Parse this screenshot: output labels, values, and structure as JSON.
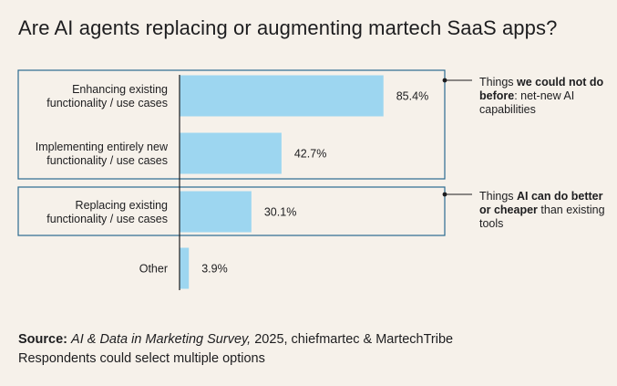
{
  "title": "Are AI agents replacing or augmenting martech SaaS apps?",
  "chart_data": {
    "type": "bar",
    "orientation": "horizontal",
    "categories": [
      [
        "Enhancing existing",
        "functionality / use cases"
      ],
      [
        "Implementing entirely new",
        "functionality / use cases"
      ],
      [
        "Replacing existing",
        "functionality / use cases"
      ],
      [
        "Other"
      ]
    ],
    "values": [
      85.4,
      42.7,
      30.1,
      3.9
    ],
    "value_labels": [
      "85.4%",
      "42.7%",
      "30.1%",
      "3.9%"
    ],
    "xlim": [
      0,
      100
    ],
    "bar_color": "#9dd6f0",
    "box_color": "#2b6a8f",
    "groups": [
      {
        "members": [
          0,
          1
        ],
        "annotation": {
          "parts": [
            [
              "Things ",
              false
            ],
            [
              "we could not do before",
              true
            ],
            [
              ": net-new AI capabilities",
              false
            ]
          ]
        }
      },
      {
        "members": [
          2
        ],
        "annotation": {
          "parts": [
            [
              "Things ",
              false
            ],
            [
              "AI can do better or cheaper",
              true
            ],
            [
              " than existing tools",
              false
            ]
          ]
        }
      }
    ],
    "grid": false,
    "legend": "none"
  },
  "footer": {
    "source_label": "Source:",
    "source_title": "AI & Data in Marketing Survey,",
    "source_rest": " 2025, chiefmartec & MartechTribe",
    "note": "Respondents could select multiple options"
  }
}
